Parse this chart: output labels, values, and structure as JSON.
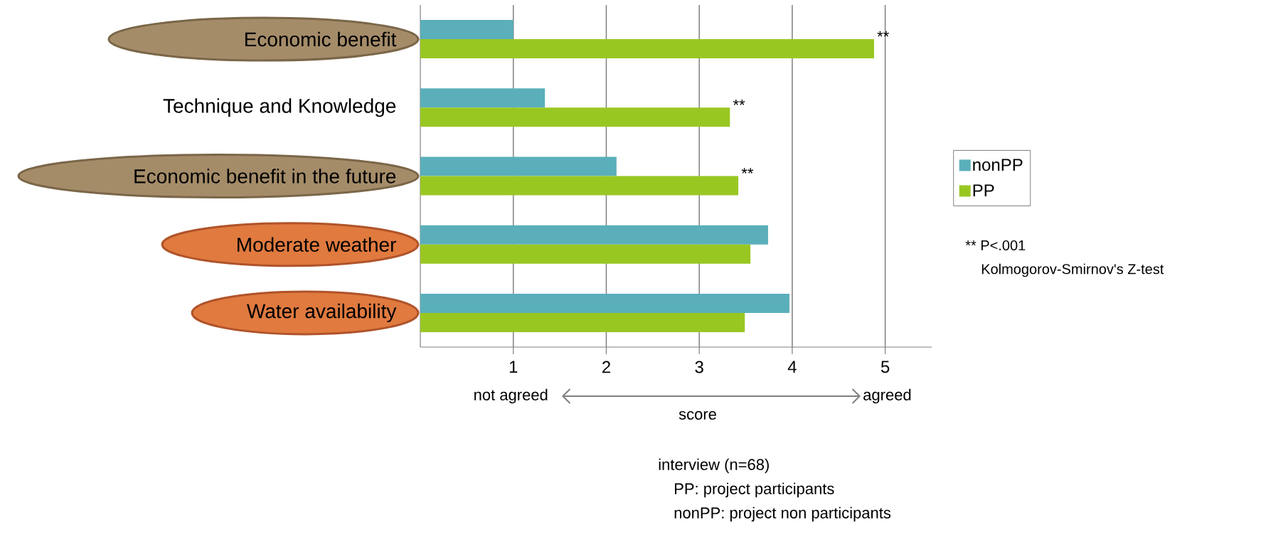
{
  "chart_data": {
    "type": "bar",
    "orientation": "horizontal",
    "categories": [
      "Economic benefit",
      "Technique and Knowledge",
      "Economic benefit in the future",
      "Moderate weather",
      "Water availability"
    ],
    "series": [
      {
        "name": "nonPP",
        "color": "#5aafba",
        "values": [
          1.0,
          1.34,
          2.11,
          3.74,
          3.97
        ]
      },
      {
        "name": "PP",
        "color": "#99c722",
        "values": [
          4.88,
          3.33,
          3.42,
          3.55,
          3.49
        ]
      }
    ],
    "xlim": [
      0,
      5.5
    ],
    "xticks": [
      1,
      2,
      3,
      4,
      5
    ],
    "xlabel": "score",
    "grid": "x",
    "legend": "right",
    "annotations": [
      {
        "text": "**",
        "x": 4.88,
        "y": "Economic benefit"
      },
      {
        "text": "**",
        "x": 3.33,
        "y": "Technique and Knowledge"
      },
      {
        "text": "**",
        "x": 3.42,
        "y": "Economic benefit in the future"
      },
      "not agreed",
      "agreed",
      "** P<.001",
      "Kolmogorov-Smirnov's Z-test",
      "interview (n=68)",
      "PP: project participants",
      "nonPP: project non participants"
    ]
  }
}
